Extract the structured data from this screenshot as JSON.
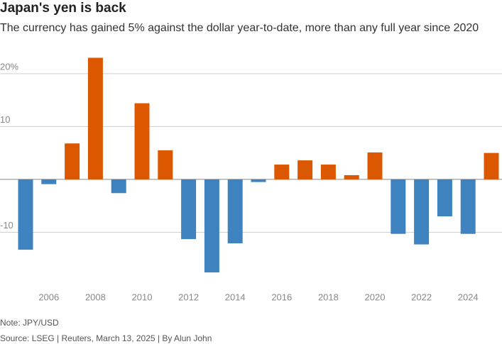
{
  "chart_data": {
    "type": "bar",
    "title": "Japan's yen is back",
    "subtitle": "The currency has gained 5% against the dollar year-to-date, more than any full year since 2020",
    "note": "Note: JPY/USD",
    "source": "Source: LSEG | Reuters, March 13, 2025 | By Alun John",
    "categories": [
      null,
      "2006",
      null,
      "2008",
      null,
      "2010",
      null,
      "2012",
      null,
      "2014",
      null,
      "2016",
      null,
      "2018",
      null,
      "2020",
      null,
      "2022",
      null,
      "2024",
      null
    ],
    "values": [
      -13.3,
      -0.9,
      6.8,
      23.0,
      -2.6,
      14.4,
      5.5,
      -11.3,
      -17.6,
      -12.1,
      -0.5,
      2.8,
      3.6,
      2.8,
      0.8,
      5.1,
      -10.3,
      -12.3,
      -7.0,
      -10.3,
      5.0
    ],
    "colors": {
      "positive": "#dc5800",
      "negative": "#3f82c0"
    },
    "ylim": [
      -20,
      24
    ],
    "yticks": [
      {
        "value": 20,
        "label": "20%"
      },
      10,
      -10
    ],
    "grid": true
  }
}
